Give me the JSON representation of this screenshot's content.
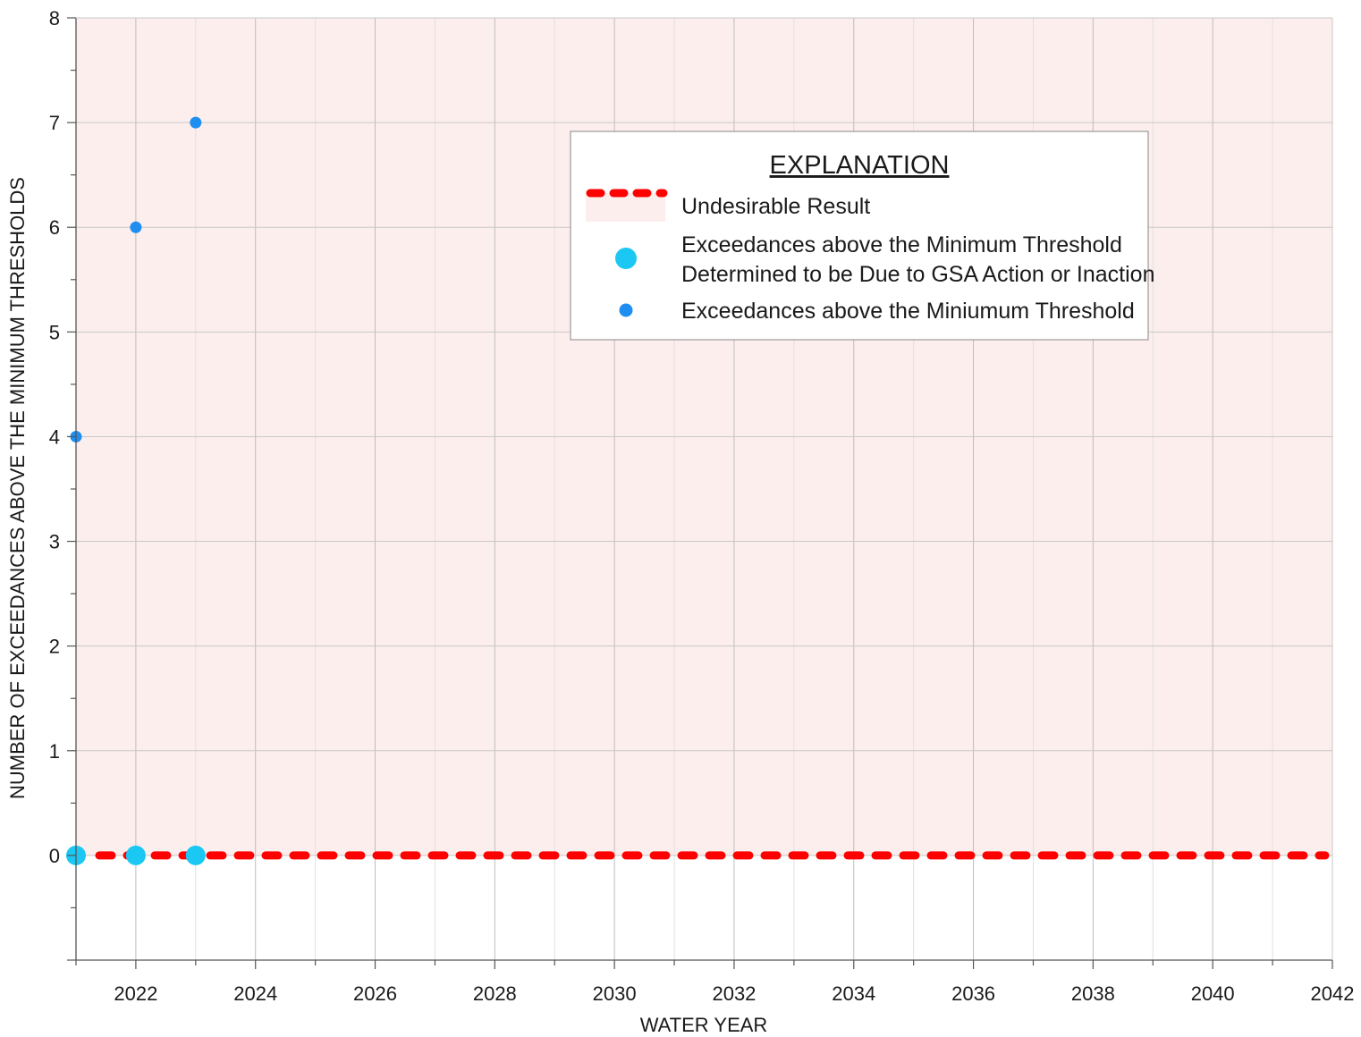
{
  "chart_data": {
    "type": "scatter",
    "title": "",
    "xlabel": "WATER YEAR",
    "ylabel": "NUMBER OF EXCEEDANCES ABOVE THE MINIMUM THRESHOLDS",
    "xlim": [
      2021,
      2042
    ],
    "ylim": [
      -1,
      8
    ],
    "x_ticks": [
      2022,
      2024,
      2026,
      2028,
      2030,
      2032,
      2034,
      2036,
      2038,
      2040,
      2042
    ],
    "y_ticks": [
      0,
      1,
      2,
      3,
      4,
      5,
      6,
      7,
      8
    ],
    "grid": true,
    "legend_position": "upper-center-right",
    "undesirable_result": {
      "threshold_value": 0,
      "x_range": [
        2021,
        2042
      ],
      "shaded_region": "above",
      "line_color": "#ff0000",
      "fill_color": "#fdeeee"
    },
    "series": [
      {
        "name": "Exceedances above the Miniumum Threshold",
        "color": "#1e8ef0",
        "marker": "small-circle",
        "points": [
          {
            "x": 2021,
            "y": 4
          },
          {
            "x": 2022,
            "y": 6
          },
          {
            "x": 2023,
            "y": 7
          }
        ]
      },
      {
        "name": "Exceedances above the Minimum Threshold Determined to be Due to GSA Action or Inaction",
        "color": "#1bc8f3",
        "marker": "large-circle",
        "points": [
          {
            "x": 2021,
            "y": 0
          },
          {
            "x": 2022,
            "y": 0
          },
          {
            "x": 2023,
            "y": 0
          }
        ]
      }
    ]
  },
  "legend": {
    "title": "EXPLANATION",
    "items": [
      {
        "lines": [
          "Undesirable Result"
        ]
      },
      {
        "lines": [
          "Exceedances above the Minimum Threshold",
          "Determined to be Due to GSA Action or Inaction"
        ]
      },
      {
        "lines": [
          "Exceedances above the Miniumum Threshold"
        ]
      }
    ]
  }
}
